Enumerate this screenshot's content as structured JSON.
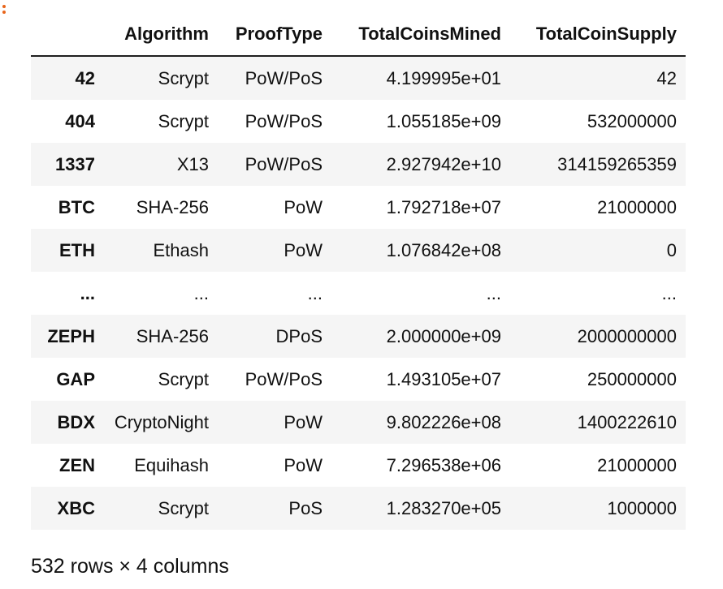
{
  "dataframe": {
    "columns": [
      "",
      "Algorithm",
      "ProofType",
      "TotalCoinsMined",
      "TotalCoinSupply"
    ],
    "rows": [
      [
        "42",
        "Scrypt",
        "PoW/PoS",
        "4.199995e+01",
        "42"
      ],
      [
        "404",
        "Scrypt",
        "PoW/PoS",
        "1.055185e+09",
        "532000000"
      ],
      [
        "1337",
        "X13",
        "PoW/PoS",
        "2.927942e+10",
        "314159265359"
      ],
      [
        "BTC",
        "SHA-256",
        "PoW",
        "1.792718e+07",
        "21000000"
      ],
      [
        "ETH",
        "Ethash",
        "PoW",
        "1.076842e+08",
        "0"
      ],
      [
        "...",
        "...",
        "...",
        "...",
        "..."
      ],
      [
        "ZEPH",
        "SHA-256",
        "DPoS",
        "2.000000e+09",
        "2000000000"
      ],
      [
        "GAP",
        "Scrypt",
        "PoW/PoS",
        "1.493105e+07",
        "250000000"
      ],
      [
        "BDX",
        "CryptoNight",
        "PoW",
        "9.802226e+08",
        "1400222610"
      ],
      [
        "ZEN",
        "Equihash",
        "PoW",
        "7.296538e+06",
        "21000000"
      ],
      [
        "XBC",
        "Scrypt",
        "PoS",
        "1.283270e+05",
        "1000000"
      ]
    ]
  },
  "footer": {
    "shape_text": "532 rows × 4 columns"
  },
  "colors": {
    "accent_dots": "#e8651a",
    "stripe": "#f5f5f5"
  }
}
